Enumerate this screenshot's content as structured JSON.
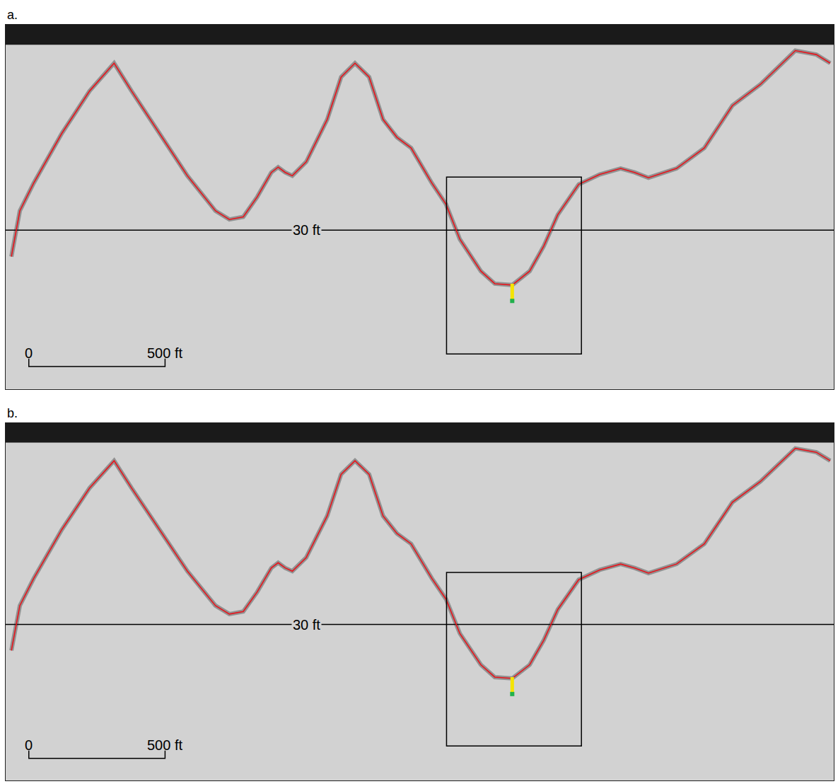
{
  "chart_data": [
    {
      "type": "line",
      "title": "a.",
      "x": [
        -64,
        -33,
        18,
        121,
        223,
        313,
        377,
        479,
        582,
        685,
        736,
        787,
        838,
        890,
        915,
        941,
        967,
        1018,
        1095,
        1146,
        1197,
        1249,
        1300,
        1351,
        1403,
        1479,
        1531,
        1582,
        1659,
        1710,
        1774,
        1838,
        1890,
        1941,
        2018,
        2095,
        2172,
        2223,
        2274,
        2377,
        2479,
        2582,
        2685,
        2813,
        2890,
        2941
      ],
      "series": [
        {
          "color": "#e8141c",
          "values": [
            34.0,
            27.1,
            22.9,
            15.4,
            9.0,
            4.8,
            9.0,
            15.4,
            21.8,
            27.1,
            28.4,
            28.0,
            25.0,
            21.3,
            20.5,
            21.3,
            21.8,
            19.7,
            13.3,
            6.9,
            4.8,
            6.9,
            13.3,
            16.0,
            17.6,
            22.9,
            26.1,
            31.4,
            36.2,
            38.1,
            38.3,
            36.2,
            32.4,
            27.7,
            23.1,
            21.6,
            20.7,
            21.3,
            22.1,
            20.7,
            17.6,
            11.2,
            8.0,
            2.9,
            3.5,
            4.8
          ]
        }
      ],
      "xlim": [
        -85,
        2954
      ],
      "ylim": [
        54,
        -1
      ],
      "tick_labels": false,
      "grid": false,
      "reference_line": {
        "y": 30,
        "label": "30 ft"
      },
      "box": {
        "x": [
          1533,
          2028
        ],
        "y": [
          22.0,
          48.7
        ]
      },
      "sounding": {
        "x": 1774,
        "y": [
          38.1,
          40.7
        ],
        "color": "#f5e400"
      },
      "scale_bar": {
        "x": [
          0,
          500
        ],
        "y": 50.6,
        "labels": [
          "0",
          "500 ft"
        ]
      }
    },
    {
      "type": "line",
      "title": "b.",
      "x": [
        -64,
        -33,
        18,
        121,
        223,
        313,
        377,
        479,
        582,
        685,
        736,
        787,
        838,
        890,
        915,
        941,
        967,
        1018,
        1095,
        1146,
        1197,
        1249,
        1300,
        1351,
        1403,
        1479,
        1531,
        1582,
        1659,
        1710,
        1774,
        1838,
        1890,
        1941,
        2018,
        2095,
        2172,
        2223,
        2274,
        2377,
        2479,
        2582,
        2685,
        2813,
        2890,
        2941
      ],
      "series": [
        {
          "color": "#e8141c",
          "values": [
            34.0,
            27.1,
            22.9,
            15.4,
            9.0,
            4.8,
            9.0,
            15.4,
            21.8,
            27.1,
            28.4,
            28.0,
            25.0,
            21.3,
            20.5,
            21.3,
            21.8,
            19.7,
            13.3,
            6.9,
            4.8,
            6.9,
            13.3,
            16.0,
            17.6,
            22.9,
            26.1,
            31.4,
            36.2,
            38.1,
            38.3,
            36.2,
            32.4,
            27.7,
            23.1,
            21.6,
            20.7,
            21.3,
            22.1,
            20.7,
            17.6,
            11.2,
            8.0,
            2.9,
            3.5,
            4.8
          ]
        }
      ],
      "xlim": [
        -85,
        2954
      ],
      "ylim": [
        54,
        -1
      ],
      "tick_labels": false,
      "grid": false,
      "reference_line": {
        "y": 30,
        "label": "30 ft"
      },
      "box": {
        "x": [
          1533,
          2028
        ],
        "y": [
          22.0,
          48.7
        ]
      },
      "sounding": {
        "x": 1774,
        "y": [
          38.1,
          40.7
        ],
        "color": "#f5e400"
      },
      "scale_bar": {
        "x": [
          0,
          500
        ],
        "y": 50.6,
        "labels": [
          "0",
          "500 ft"
        ]
      }
    }
  ]
}
